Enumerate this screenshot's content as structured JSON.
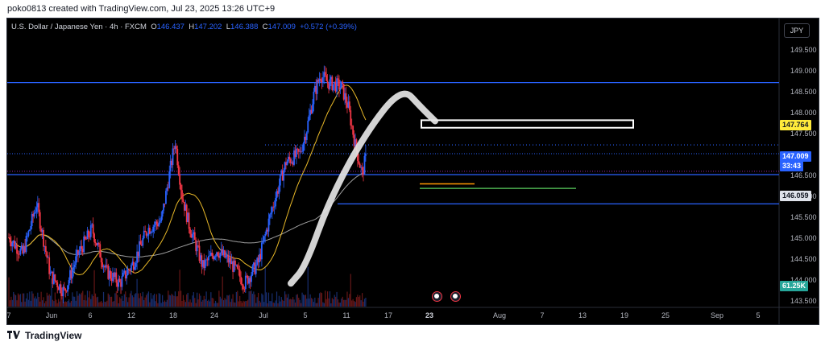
{
  "header": {
    "text": "poko0813 created with TradingView.com, Jul 23, 2025 13:26 UTC+9"
  },
  "legend": {
    "symbol": "U.S. Dollar / Japanese Yen · 4h · FXCM",
    "o_label": "O",
    "o_val": "146.437",
    "h_label": "H",
    "h_val": "147.202",
    "l_label": "L",
    "l_val": "146.388",
    "c_label": "C",
    "c_val": "147.009",
    "change": "+0.572 (+0.39%)"
  },
  "currency_button": "JPY",
  "y_axis": {
    "labels": [
      "149.500",
      "149.000",
      "148.500",
      "148.000",
      "147.500",
      "146.500",
      "146.000",
      "145.500",
      "145.000",
      "144.500",
      "144.000",
      "143.500"
    ],
    "badges": {
      "level": "147.764",
      "last_price": "147.009",
      "countdown": "33:43",
      "ma": "146.059",
      "volume": "61.25K"
    }
  },
  "x_axis": {
    "labels": [
      "7",
      "Jun",
      "6",
      "12",
      "18",
      "24",
      "Jul",
      "5",
      "11",
      "17",
      "23",
      "Aug",
      "7",
      "13",
      "19",
      "25",
      "Sep",
      "5"
    ],
    "highlight": "23"
  },
  "footer": {
    "brand": "TradingView"
  },
  "colors": {
    "up": "#2962ff",
    "down": "#f23645",
    "background": "#000000",
    "ma_fast": "#e8b828",
    "ma_slow": "#9e9e9e",
    "hline": "#2962ff",
    "box": "#ffffff",
    "orange_line": "#ff9800",
    "green_line": "#4caf50"
  },
  "chart_data": {
    "type": "candlestick",
    "instrument": "USD/JPY",
    "timeframe": "4h",
    "ylim": [
      143.5,
      149.5
    ],
    "last_close": 147.009,
    "horizontal_levels": [
      148.7,
      146.5,
      145.8
    ],
    "dotted_levels": [
      147.21,
      147.0,
      146.58
    ],
    "rectangle_levels": [
      147.62,
      147.8
    ],
    "short_levels": [
      146.28,
      146.17
    ],
    "ma_slow_last": 146.059,
    "swing_path": [
      {
        "x": "Jul 3",
        "y": 143.9
      },
      {
        "x": "Jul 5",
        "y": 144.3
      },
      {
        "x": "Jul 9",
        "y": 145.9
      },
      {
        "x": "Jul 14",
        "y": 147.5
      },
      {
        "x": "Jul 18",
        "y": 148.6
      },
      {
        "x": "Jul 21",
        "y": 148.1
      },
      {
        "x": "Jul 22",
        "y": 147.78
      }
    ],
    "anchors": [
      {
        "d": 0,
        "p": 145.0
      },
      {
        "d": 2,
        "p": 144.6
      },
      {
        "d": 4,
        "p": 145.8
      },
      {
        "d": 6,
        "p": 144.1
      },
      {
        "d": 8,
        "p": 143.7
      },
      {
        "d": 10,
        "p": 144.6
      },
      {
        "d": 12,
        "p": 145.2
      },
      {
        "d": 14,
        "p": 144.2
      },
      {
        "d": 16,
        "p": 143.9
      },
      {
        "d": 18,
        "p": 144.4
      },
      {
        "d": 20,
        "p": 145.2
      },
      {
        "d": 22,
        "p": 145.4
      },
      {
        "d": 24,
        "p": 147.3
      },
      {
        "d": 25,
        "p": 146.0
      },
      {
        "d": 26,
        "p": 145.3
      },
      {
        "d": 28,
        "p": 144.3
      },
      {
        "d": 30,
        "p": 144.7
      },
      {
        "d": 32,
        "p": 144.4
      },
      {
        "d": 34,
        "p": 143.9
      },
      {
        "d": 36,
        "p": 144.4
      },
      {
        "d": 38,
        "p": 145.7
      },
      {
        "d": 40,
        "p": 146.8
      },
      {
        "d": 42,
        "p": 147.0
      },
      {
        "d": 43,
        "p": 147.6
      },
      {
        "d": 44,
        "p": 148.4
      },
      {
        "d": 45,
        "p": 148.9
      },
      {
        "d": 46,
        "p": 148.7
      },
      {
        "d": 48,
        "p": 148.6
      },
      {
        "d": 49,
        "p": 148.1
      },
      {
        "d": 50,
        "p": 147.2
      },
      {
        "d": 51,
        "p": 146.5
      },
      {
        "d": 51.6,
        "p": 147.0
      }
    ]
  }
}
